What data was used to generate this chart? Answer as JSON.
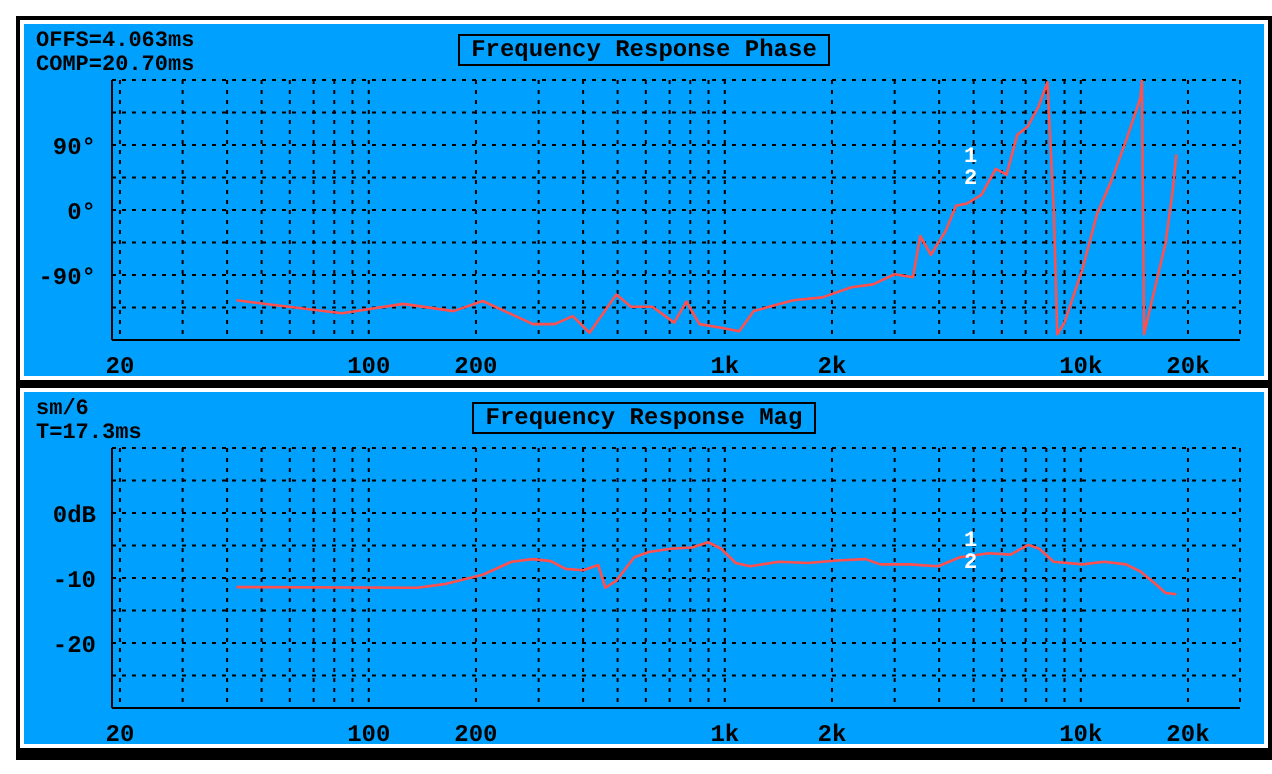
{
  "chart_data": [
    {
      "type": "line",
      "title": "Frequency Response Phase",
      "log": "x",
      "grid": true,
      "annotations": [
        "OFFS=4.063ms",
        "COMP=20.70ms",
        "1",
        "2"
      ],
      "xlim": [
        19,
        28000
      ],
      "xticks": [
        20,
        {
          "value": 30,
          "label": null
        },
        {
          "value": 40,
          "label": null
        },
        {
          "value": 50,
          "label": null
        },
        {
          "value": 60,
          "label": null
        },
        {
          "value": 70,
          "label": null
        },
        {
          "value": 80,
          "label": null
        },
        {
          "value": 90,
          "label": null
        },
        100,
        200,
        {
          "value": 300,
          "label": null
        },
        {
          "value": 400,
          "label": null
        },
        {
          "value": 500,
          "label": null
        },
        {
          "value": 600,
          "label": null
        },
        {
          "value": 700,
          "label": null
        },
        {
          "value": 800,
          "label": null
        },
        {
          "value": 900,
          "label": null
        },
        {
          "value": 1000,
          "label": "1k"
        },
        {
          "value": 2000,
          "label": "2k"
        },
        {
          "value": 3000,
          "label": null
        },
        {
          "value": 4000,
          "label": null
        },
        {
          "value": 5000,
          "label": null
        },
        {
          "value": 6000,
          "label": null
        },
        {
          "value": 7000,
          "label": null
        },
        {
          "value": 8000,
          "label": null
        },
        {
          "value": 9000,
          "label": null
        },
        {
          "value": 10000,
          "label": "10k"
        },
        {
          "value": 20000,
          "label": "20k"
        }
      ],
      "ylim": [
        -180,
        180
      ],
      "yticks": [
        {
          "value": -135,
          "label": null
        },
        {
          "value": -90,
          "label": "-90°"
        },
        {
          "value": -45,
          "label": null
        },
        {
          "value": 0,
          "label": "0°"
        },
        {
          "value": 45,
          "label": null
        },
        {
          "value": 90,
          "label": "90°"
        },
        {
          "value": 135,
          "label": null
        }
      ],
      "x": [
        42.5,
        84,
        125,
        173,
        209,
        289,
        333,
        374,
        417,
        496,
        545,
        626,
        721,
        780,
        849,
        977,
        1098,
        1206,
        1355,
        1560,
        1880,
        2267,
        2610,
        3001,
        3376,
        3540,
        3793,
        4163,
        4464,
        4790,
        5257,
        5770,
        6185,
        6630,
        7107,
        7620,
        8060,
        8394,
        8590,
        9000,
        10120,
        11100,
        12200,
        13400,
        14700,
        14850,
        15050,
        16130,
        17300,
        18100,
        18550
      ],
      "series": [
        {
          "color": "#ff5050",
          "values": [
            -125,
            -143,
            -130,
            -140,
            -126,
            -158,
            -158,
            -147,
            -170,
            -117,
            -134,
            -134,
            -156,
            -127,
            -158,
            -163,
            -168,
            -140,
            -133,
            -125,
            -121,
            -107,
            -103,
            -89,
            -93,
            -36,
            -62,
            -30,
            6,
            9,
            21,
            57,
            49,
            104,
            116,
            144,
            177,
            0,
            -172,
            -156,
            -81,
            -6,
            41,
            96,
            155,
            179,
            -172,
            -109,
            -46,
            25,
            77
          ]
        }
      ]
    },
    {
      "type": "line",
      "title": "Frequency Response Mag",
      "log": "x",
      "grid": true,
      "annotations": [
        "sm/6",
        "T=17.3ms",
        "1",
        "2"
      ],
      "xlim": [
        19,
        28000
      ],
      "xticks": [
        20,
        {
          "value": 30,
          "label": null
        },
        {
          "value": 40,
          "label": null
        },
        {
          "value": 50,
          "label": null
        },
        {
          "value": 60,
          "label": null
        },
        {
          "value": 70,
          "label": null
        },
        {
          "value": 80,
          "label": null
        },
        {
          "value": 90,
          "label": null
        },
        100,
        200,
        {
          "value": 300,
          "label": null
        },
        {
          "value": 400,
          "label": null
        },
        {
          "value": 500,
          "label": null
        },
        {
          "value": 600,
          "label": null
        },
        {
          "value": 700,
          "label": null
        },
        {
          "value": 800,
          "label": null
        },
        {
          "value": 900,
          "label": null
        },
        {
          "value": 1000,
          "label": "1k"
        },
        {
          "value": 2000,
          "label": "2k"
        },
        {
          "value": 3000,
          "label": null
        },
        {
          "value": 4000,
          "label": null
        },
        {
          "value": 5000,
          "label": null
        },
        {
          "value": 6000,
          "label": null
        },
        {
          "value": 7000,
          "label": null
        },
        {
          "value": 8000,
          "label": null
        },
        {
          "value": 9000,
          "label": null
        },
        {
          "value": 10000,
          "label": "10k"
        },
        {
          "value": 20000,
          "label": "20k"
        }
      ],
      "ylim": [
        -30,
        10
      ],
      "yticks": [
        {
          "value": -25,
          "label": null
        },
        -20,
        {
          "value": -15,
          "label": null
        },
        -10,
        {
          "value": -5,
          "label": null
        },
        {
          "value": 0,
          "label": "0dB"
        },
        {
          "value": 5,
          "label": null
        }
      ],
      "x": [
        42.5,
        137,
        165,
        209,
        252,
        289,
        325,
        357,
        401,
        441,
        462,
        496,
        557,
        612,
        704,
        810,
        898,
        977,
        1073,
        1178,
        1420,
        1713,
        2063,
        2488,
        2733,
        3298,
        3977,
        4577,
        5519,
        6346,
        7124,
        7645,
        8394,
        10120,
        11640,
        13400,
        14700,
        16130,
        17300,
        18550
      ],
      "series": [
        {
          "color": "#ff5050",
          "values": [
            -11.4,
            -11.5,
            -10.9,
            -9.5,
            -7.5,
            -7.1,
            -7.4,
            -8.6,
            -8.8,
            -8.0,
            -11.5,
            -10.4,
            -6.8,
            -6.0,
            -5.5,
            -5.3,
            -4.5,
            -5.5,
            -7.7,
            -8.2,
            -7.5,
            -7.7,
            -7.3,
            -7.1,
            -7.9,
            -7.9,
            -8.2,
            -6.8,
            -6.2,
            -6.4,
            -4.9,
            -5.5,
            -7.5,
            -7.9,
            -7.5,
            -7.9,
            -9.0,
            -10.8,
            -12.3,
            -12.5
          ]
        }
      ]
    }
  ]
}
